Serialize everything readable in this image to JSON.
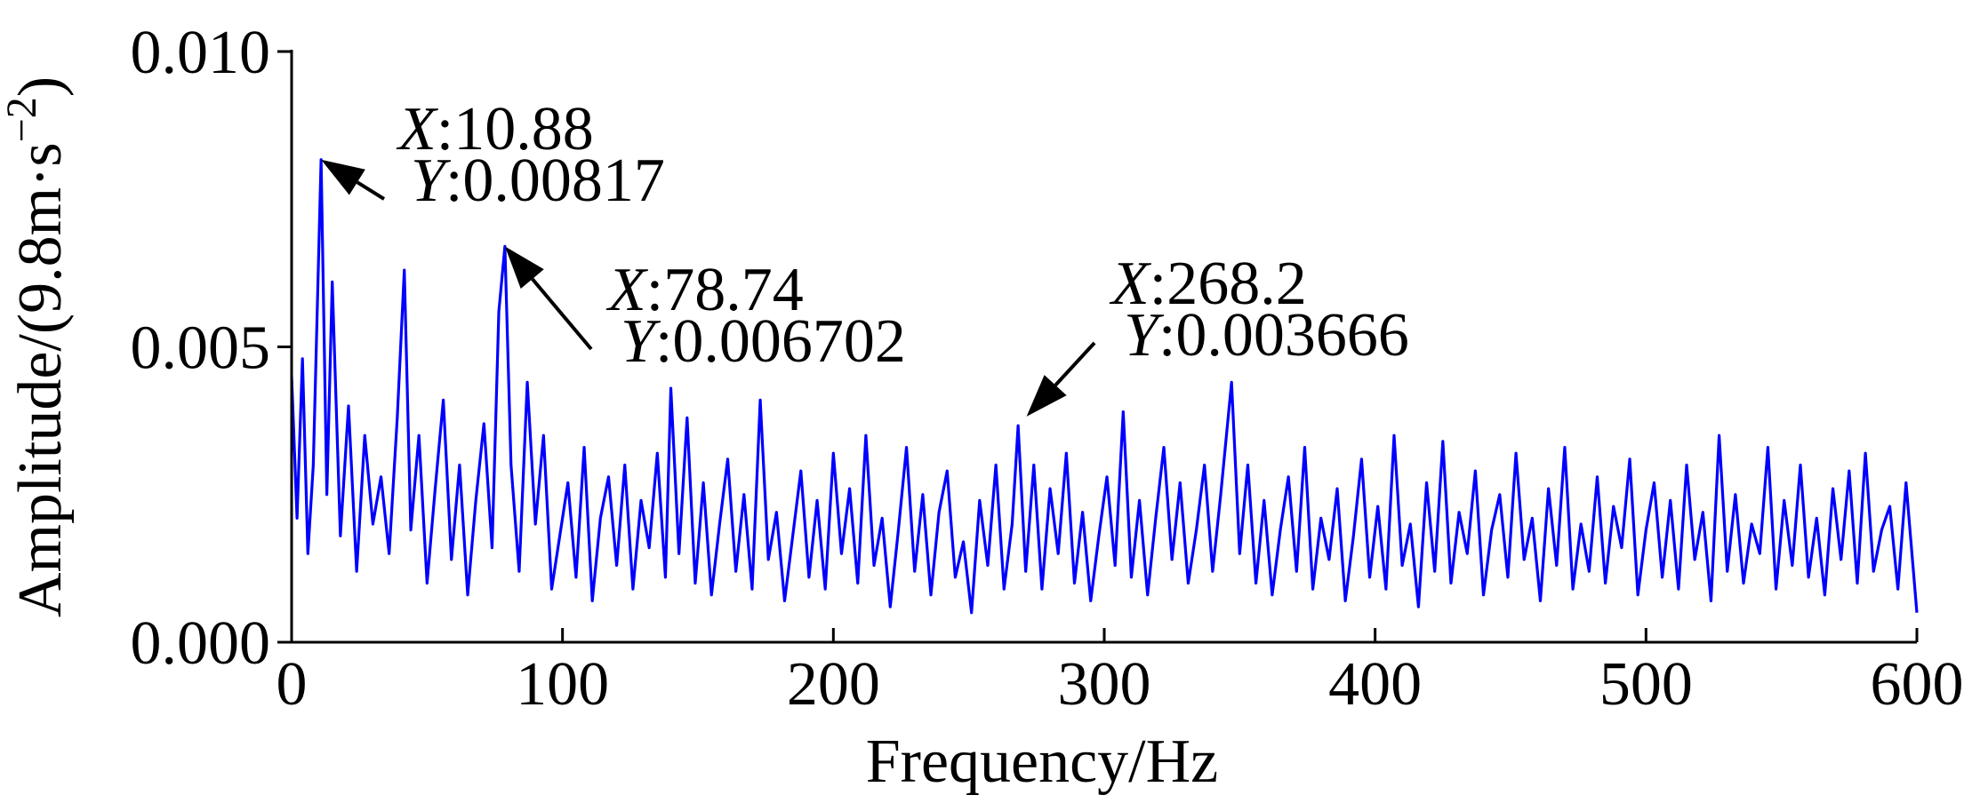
{
  "chart_data": {
    "type": "line",
    "x_label": "Frequency/Hz",
    "y_label": [
      "Amplitude/(9.8m·s",
      "−2",
      ")"
    ],
    "xlim": [
      0,
      600
    ],
    "xticks": [
      0,
      100,
      200,
      300,
      400,
      500,
      600
    ],
    "ylim": [
      0,
      0.01
    ],
    "yticks": [
      {
        "value": 0,
        "label": "0.000"
      },
      {
        "value": 0.005,
        "label": "0.005"
      },
      {
        "value": 0.01,
        "label": "0.010"
      }
    ],
    "color": "#0000ff",
    "x": [
      0,
      2,
      4,
      6,
      8,
      10.88,
      13,
      15,
      18,
      21,
      24,
      27,
      30,
      33,
      36,
      39,
      41.6,
      44,
      47,
      50,
      53,
      56,
      59,
      62,
      65,
      68,
      71,
      74,
      76.5,
      78.74,
      81,
      84,
      87,
      90,
      93,
      96,
      99,
      102,
      105,
      108,
      111,
      114,
      117,
      120,
      123,
      126,
      129,
      132,
      135,
      138,
      140,
      143,
      146,
      149,
      152,
      155,
      158,
      161,
      164,
      167,
      170,
      173,
      176,
      179,
      182,
      185,
      188,
      191,
      194,
      197,
      200,
      203,
      206,
      209,
      212,
      215,
      218,
      221,
      224,
      227,
      230,
      233,
      236,
      239,
      242,
      245,
      248,
      251,
      254,
      257,
      260,
      263,
      266,
      268.2,
      271,
      274,
      277,
      280,
      283,
      286,
      289,
      292,
      295,
      298,
      301,
      304,
      307,
      310,
      313,
      316,
      319,
      322,
      325,
      328,
      331,
      334,
      337,
      340,
      343,
      347,
      350,
      353,
      356,
      359,
      362,
      365,
      368,
      371,
      374,
      377,
      380,
      383,
      386,
      389,
      392,
      395,
      398,
      401,
      404,
      407,
      410,
      413,
      416,
      419,
      422,
      425,
      428,
      431,
      434,
      437,
      440,
      443,
      446,
      449,
      452,
      455,
      458,
      461,
      464,
      467,
      470,
      473,
      476,
      479,
      482,
      485,
      488,
      491,
      494,
      497,
      500,
      503,
      506,
      509,
      512,
      515,
      518,
      521,
      524,
      527,
      530,
      533,
      536,
      539,
      542,
      545,
      548,
      551,
      554,
      557,
      560,
      563,
      566,
      569,
      572,
      575,
      578,
      581,
      584,
      587,
      590,
      593,
      596,
      600
    ],
    "values": [
      0.0045,
      0.0021,
      0.0048,
      0.0015,
      0.003,
      0.00817,
      0.0025,
      0.0061,
      0.0018,
      0.004,
      0.0012,
      0.0035,
      0.002,
      0.0028,
      0.0015,
      0.0038,
      0.0063,
      0.0019,
      0.0035,
      0.001,
      0.0026,
      0.0041,
      0.0014,
      0.003,
      0.0008,
      0.0024,
      0.0037,
      0.0016,
      0.0056,
      0.006702,
      0.003,
      0.0012,
      0.0044,
      0.002,
      0.0035,
      0.0009,
      0.0018,
      0.0027,
      0.0011,
      0.0033,
      0.0007,
      0.0021,
      0.0028,
      0.0013,
      0.003,
      0.0009,
      0.0024,
      0.0016,
      0.0032,
      0.0011,
      0.0043,
      0.0015,
      0.0038,
      0.001,
      0.0027,
      0.0008,
      0.002,
      0.0031,
      0.0012,
      0.0025,
      0.0009,
      0.0041,
      0.0014,
      0.0022,
      0.0007,
      0.0018,
      0.0029,
      0.0011,
      0.0024,
      0.0009,
      0.0032,
      0.0015,
      0.0026,
      0.001,
      0.0035,
      0.0013,
      0.0021,
      0.0006,
      0.0019,
      0.0033,
      0.0012,
      0.0025,
      0.0008,
      0.0022,
      0.0029,
      0.0011,
      0.0017,
      0.0005,
      0.0024,
      0.0013,
      0.003,
      0.0009,
      0.002,
      0.003666,
      0.0012,
      0.003,
      0.0009,
      0.0026,
      0.0015,
      0.0032,
      0.001,
      0.0022,
      0.0007,
      0.0018,
      0.0028,
      0.0013,
      0.0039,
      0.0011,
      0.0024,
      0.0008,
      0.0021,
      0.0033,
      0.0014,
      0.0027,
      0.001,
      0.0019,
      0.003,
      0.0012,
      0.0025,
      0.0044,
      0.0015,
      0.003,
      0.001,
      0.0024,
      0.0008,
      0.0019,
      0.0028,
      0.0012,
      0.0033,
      0.0009,
      0.0021,
      0.0014,
      0.0026,
      0.0007,
      0.0018,
      0.0031,
      0.0011,
      0.0023,
      0.0009,
      0.0035,
      0.0013,
      0.002,
      0.0006,
      0.0027,
      0.0012,
      0.0034,
      0.001,
      0.0022,
      0.0015,
      0.0029,
      0.0008,
      0.0019,
      0.0025,
      0.0011,
      0.0032,
      0.0014,
      0.0021,
      0.0007,
      0.0026,
      0.0013,
      0.0033,
      0.0009,
      0.002,
      0.0012,
      0.0028,
      0.001,
      0.0023,
      0.0016,
      0.0031,
      0.0008,
      0.0019,
      0.0027,
      0.0011,
      0.0024,
      0.0009,
      0.003,
      0.0014,
      0.0022,
      0.0007,
      0.0035,
      0.0012,
      0.0025,
      0.001,
      0.002,
      0.0015,
      0.0033,
      0.0009,
      0.0024,
      0.0013,
      0.003,
      0.0011,
      0.0021,
      0.0008,
      0.0026,
      0.0014,
      0.0029,
      0.001,
      0.0032,
      0.0012,
      0.0019,
      0.0023,
      0.0009,
      0.0027,
      0.0005
    ],
    "separator": ":",
    "annotations": [
      {
        "x_name": "X",
        "x": 10.88,
        "y_name": "Y",
        "y": 0.00817
      },
      {
        "x_name": "X",
        "x": 78.74,
        "y_name": "Y",
        "y": 0.006702
      },
      {
        "x_name": "X",
        "x": 268.2,
        "y_name": "Y",
        "y": 0.003666
      }
    ]
  }
}
